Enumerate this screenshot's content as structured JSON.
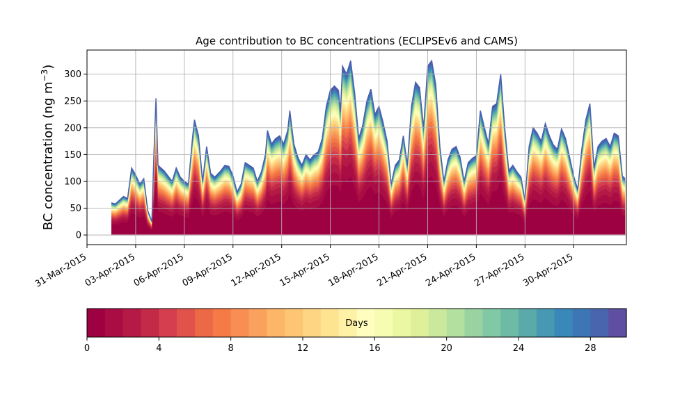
{
  "chart_data": {
    "type": "area",
    "title": "Age contribution to BC concentrations (ECLIPSEv6 and CAMS)",
    "ylabel": "BC concentration (ng m",
    "ylabel_superscript": "−3",
    "ylabel_close": ")",
    "xlabel": "",
    "ylim": [
      -18,
      345
    ],
    "y_ticks": [
      0,
      50,
      100,
      150,
      200,
      250,
      300
    ],
    "xlim": [
      "2015-03-31T00:00",
      "2015-05-03T06:00"
    ],
    "x_ticks": [
      {
        "date": "2015-03-31",
        "label": "31-Mar-2015"
      },
      {
        "date": "2015-04-03",
        "label": "03-Apr-2015"
      },
      {
        "date": "2015-04-06",
        "label": "06-Apr-2015"
      },
      {
        "date": "2015-04-09",
        "label": "09-Apr-2015"
      },
      {
        "date": "2015-04-12",
        "label": "12-Apr-2015"
      },
      {
        "date": "2015-04-15",
        "label": "15-Apr-2015"
      },
      {
        "date": "2015-04-18",
        "label": "18-Apr-2015"
      },
      {
        "date": "2015-04-21",
        "label": "21-Apr-2015"
      },
      {
        "date": "2015-04-24",
        "label": "24-Apr-2015"
      },
      {
        "date": "2015-04-27",
        "label": "27-Apr-2015"
      },
      {
        "date": "2015-04-30",
        "label": "30-Apr-2015"
      }
    ],
    "grid": true,
    "total_series": {
      "name": "",
      "points": [
        [
          "2015-04-01T12:00",
          60
        ],
        [
          "2015-04-01T18:00",
          58
        ],
        [
          "2015-04-02T00:00",
          65
        ],
        [
          "2015-04-02T06:00",
          72
        ],
        [
          "2015-04-02T12:00",
          68
        ],
        [
          "2015-04-02T18:00",
          125
        ],
        [
          "2015-04-03T00:00",
          112
        ],
        [
          "2015-04-03T06:00",
          95
        ],
        [
          "2015-04-03T12:00",
          105
        ],
        [
          "2015-04-03T18:00",
          45
        ],
        [
          "2015-04-04T00:00",
          25
        ],
        [
          "2015-04-04T03:00",
          150
        ],
        [
          "2015-04-04T06:00",
          255
        ],
        [
          "2015-04-04T09:00",
          130
        ],
        [
          "2015-04-04T18:00",
          120
        ],
        [
          "2015-04-05T06:00",
          100
        ],
        [
          "2015-04-05T12:00",
          125
        ],
        [
          "2015-04-05T18:00",
          108
        ],
        [
          "2015-04-06T00:00",
          100
        ],
        [
          "2015-04-06T06:00",
          95
        ],
        [
          "2015-04-06T12:00",
          180
        ],
        [
          "2015-04-06T15:00",
          215
        ],
        [
          "2015-04-06T21:00",
          185
        ],
        [
          "2015-04-07T03:00",
          100
        ],
        [
          "2015-04-07T09:00",
          165
        ],
        [
          "2015-04-07T15:00",
          115
        ],
        [
          "2015-04-07T21:00",
          108
        ],
        [
          "2015-04-08T06:00",
          120
        ],
        [
          "2015-04-08T12:00",
          130
        ],
        [
          "2015-04-08T18:00",
          128
        ],
        [
          "2015-04-09T00:00",
          110
        ],
        [
          "2015-04-09T06:00",
          80
        ],
        [
          "2015-04-09T12:00",
          95
        ],
        [
          "2015-04-09T18:00",
          135
        ],
        [
          "2015-04-10T00:00",
          130
        ],
        [
          "2015-04-10T06:00",
          125
        ],
        [
          "2015-04-10T12:00",
          100
        ],
        [
          "2015-04-10T18:00",
          118
        ],
        [
          "2015-04-11T00:00",
          150
        ],
        [
          "2015-04-11T03:00",
          195
        ],
        [
          "2015-04-11T09:00",
          170
        ],
        [
          "2015-04-11T15:00",
          180
        ],
        [
          "2015-04-11T21:00",
          185
        ],
        [
          "2015-04-12T03:00",
          170
        ],
        [
          "2015-04-12T09:00",
          195
        ],
        [
          "2015-04-12T12:00",
          232
        ],
        [
          "2015-04-12T18:00",
          170
        ],
        [
          "2015-04-13T00:00",
          145
        ],
        [
          "2015-04-13T06:00",
          130
        ],
        [
          "2015-04-13T12:00",
          150
        ],
        [
          "2015-04-13T18:00",
          140
        ],
        [
          "2015-04-14T00:00",
          150
        ],
        [
          "2015-04-14T06:00",
          155
        ],
        [
          "2015-04-14T12:00",
          180
        ],
        [
          "2015-04-14T18:00",
          240
        ],
        [
          "2015-04-15T00:00",
          270
        ],
        [
          "2015-04-15T06:00",
          278
        ],
        [
          "2015-04-15T12:00",
          270
        ],
        [
          "2015-04-15T15:00",
          230
        ],
        [
          "2015-04-15T18:00",
          315
        ],
        [
          "2015-04-16T00:00",
          300
        ],
        [
          "2015-04-16T06:00",
          325
        ],
        [
          "2015-04-16T12:00",
          265
        ],
        [
          "2015-04-16T18:00",
          180
        ],
        [
          "2015-04-17T00:00",
          205
        ],
        [
          "2015-04-17T06:00",
          250
        ],
        [
          "2015-04-17T12:00",
          272
        ],
        [
          "2015-04-17T18:00",
          225
        ],
        [
          "2015-04-18T00:00",
          240
        ],
        [
          "2015-04-18T06:00",
          210
        ],
        [
          "2015-04-18T12:00",
          175
        ],
        [
          "2015-04-18T18:00",
          95
        ],
        [
          "2015-04-19T00:00",
          130
        ],
        [
          "2015-04-19T06:00",
          140
        ],
        [
          "2015-04-19T12:00",
          185
        ],
        [
          "2015-04-19T18:00",
          130
        ],
        [
          "2015-04-20T00:00",
          240
        ],
        [
          "2015-04-20T06:00",
          285
        ],
        [
          "2015-04-20T12:00",
          275
        ],
        [
          "2015-04-20T18:00",
          200
        ],
        [
          "2015-04-21T00:00",
          315
        ],
        [
          "2015-04-21T06:00",
          325
        ],
        [
          "2015-04-21T12:00",
          280
        ],
        [
          "2015-04-21T18:00",
          165
        ],
        [
          "2015-04-22T00:00",
          100
        ],
        [
          "2015-04-22T06:00",
          140
        ],
        [
          "2015-04-22T12:00",
          160
        ],
        [
          "2015-04-22T18:00",
          165
        ],
        [
          "2015-04-23T00:00",
          145
        ],
        [
          "2015-04-23T06:00",
          100
        ],
        [
          "2015-04-23T12:00",
          135
        ],
        [
          "2015-04-23T18:00",
          143
        ],
        [
          "2015-04-24T00:00",
          148
        ],
        [
          "2015-04-24T06:00",
          232
        ],
        [
          "2015-04-24T12:00",
          200
        ],
        [
          "2015-04-24T18:00",
          170
        ],
        [
          "2015-04-25T00:00",
          240
        ],
        [
          "2015-04-25T06:00",
          245
        ],
        [
          "2015-04-25T12:00",
          300
        ],
        [
          "2015-04-25T18:00",
          200
        ],
        [
          "2015-04-26T00:00",
          120
        ],
        [
          "2015-04-26T06:00",
          130
        ],
        [
          "2015-04-26T12:00",
          118
        ],
        [
          "2015-04-26T18:00",
          108
        ],
        [
          "2015-04-27T00:00",
          65
        ],
        [
          "2015-04-27T06:00",
          165
        ],
        [
          "2015-04-27T12:00",
          200
        ],
        [
          "2015-04-27T18:00",
          190
        ],
        [
          "2015-04-28T00:00",
          175
        ],
        [
          "2015-04-28T06:00",
          208
        ],
        [
          "2015-04-28T12:00",
          185
        ],
        [
          "2015-04-28T18:00",
          168
        ],
        [
          "2015-04-29T00:00",
          160
        ],
        [
          "2015-04-29T06:00",
          198
        ],
        [
          "2015-04-29T12:00",
          180
        ],
        [
          "2015-04-29T18:00",
          145
        ],
        [
          "2015-04-30T00:00",
          110
        ],
        [
          "2015-04-30T06:00",
          85
        ],
        [
          "2015-04-30T12:00",
          160
        ],
        [
          "2015-04-30T18:00",
          215
        ],
        [
          "2015-05-01T00:00",
          245
        ],
        [
          "2015-05-01T06:00",
          125
        ],
        [
          "2015-05-01T12:00",
          165
        ],
        [
          "2015-05-01T18:00",
          175
        ],
        [
          "2015-05-02T00:00",
          180
        ],
        [
          "2015-05-02T06:00",
          165
        ],
        [
          "2015-05-02T12:00",
          190
        ],
        [
          "2015-05-02T18:00",
          185
        ],
        [
          "2015-05-03T00:00",
          110
        ],
        [
          "2015-05-03T04:00",
          105
        ]
      ]
    },
    "age_layers": 30,
    "colorbar": {
      "label": "Days",
      "range": [
        0,
        30
      ],
      "ticks": [
        0,
        4,
        8,
        12,
        16,
        20,
        24,
        28
      ],
      "colormap": "Spectral",
      "colors": [
        "#9e0142",
        "#a90d44",
        "#b41a46",
        "#c22a48",
        "#d53e4f",
        "#e1534a",
        "#ec6946",
        "#f57a46",
        "#f98e52",
        "#fba15e",
        "#fdb567",
        "#fdc574",
        "#fed582",
        "#fee391",
        "#fff2a6",
        "#fffebe",
        "#f7fcb3",
        "#ecf7a2",
        "#dff09b",
        "#cbe99d",
        "#b3df9f",
        "#9ad3a2",
        "#81c8a4",
        "#6dbba5",
        "#5aaaa9",
        "#4799b3",
        "#3a87b9",
        "#3d76b5",
        "#4865ad",
        "#5e4fa2"
      ]
    }
  }
}
